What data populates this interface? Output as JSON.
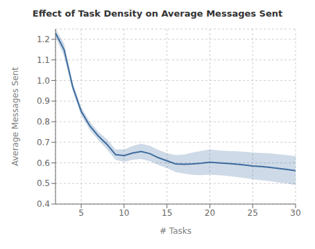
{
  "chart_data": {
    "type": "line",
    "title": "Effect of Task Density on Average Messages Sent",
    "xlabel": "# Tasks",
    "ylabel": "Average Messages Sent",
    "x": [
      2,
      3,
      4,
      5,
      6,
      7,
      8,
      9,
      10,
      11,
      12,
      13,
      14,
      15,
      16,
      17,
      18,
      19,
      20,
      21,
      22,
      23,
      24,
      25,
      26,
      27,
      28,
      29,
      30
    ],
    "values": [
      1.23,
      1.15,
      0.97,
      0.85,
      0.78,
      0.73,
      0.69,
      0.64,
      0.635,
      0.648,
      0.655,
      0.645,
      0.625,
      0.61,
      0.595,
      0.593,
      0.595,
      0.598,
      0.603,
      0.6,
      0.597,
      0.594,
      0.59,
      0.585,
      0.582,
      0.578,
      0.573,
      0.568,
      0.562
    ],
    "lower": [
      1.21,
      1.12,
      0.95,
      0.83,
      0.76,
      0.71,
      0.665,
      0.615,
      0.605,
      0.615,
      0.618,
      0.608,
      0.59,
      0.575,
      0.555,
      0.548,
      0.542,
      0.54,
      0.543,
      0.54,
      0.537,
      0.532,
      0.527,
      0.52,
      0.516,
      0.511,
      0.505,
      0.5,
      0.492
    ],
    "upper": [
      1.25,
      1.18,
      0.99,
      0.87,
      0.8,
      0.75,
      0.715,
      0.665,
      0.665,
      0.682,
      0.693,
      0.683,
      0.663,
      0.647,
      0.638,
      0.64,
      0.65,
      0.658,
      0.665,
      0.66,
      0.658,
      0.657,
      0.654,
      0.65,
      0.648,
      0.646,
      0.642,
      0.638,
      0.633
    ],
    "color": "#3d6b9e",
    "xlim": [
      2,
      30
    ],
    "xticks": [
      5,
      10,
      15,
      20,
      25,
      30
    ],
    "ylim": [
      0.4,
      1.25
    ],
    "yticks": [
      0.4,
      0.5,
      0.6,
      0.7,
      0.8,
      0.9,
      {
        "value": 1.0,
        "label": "1.0"
      },
      1.1,
      1.2
    ],
    "grid": true
  }
}
